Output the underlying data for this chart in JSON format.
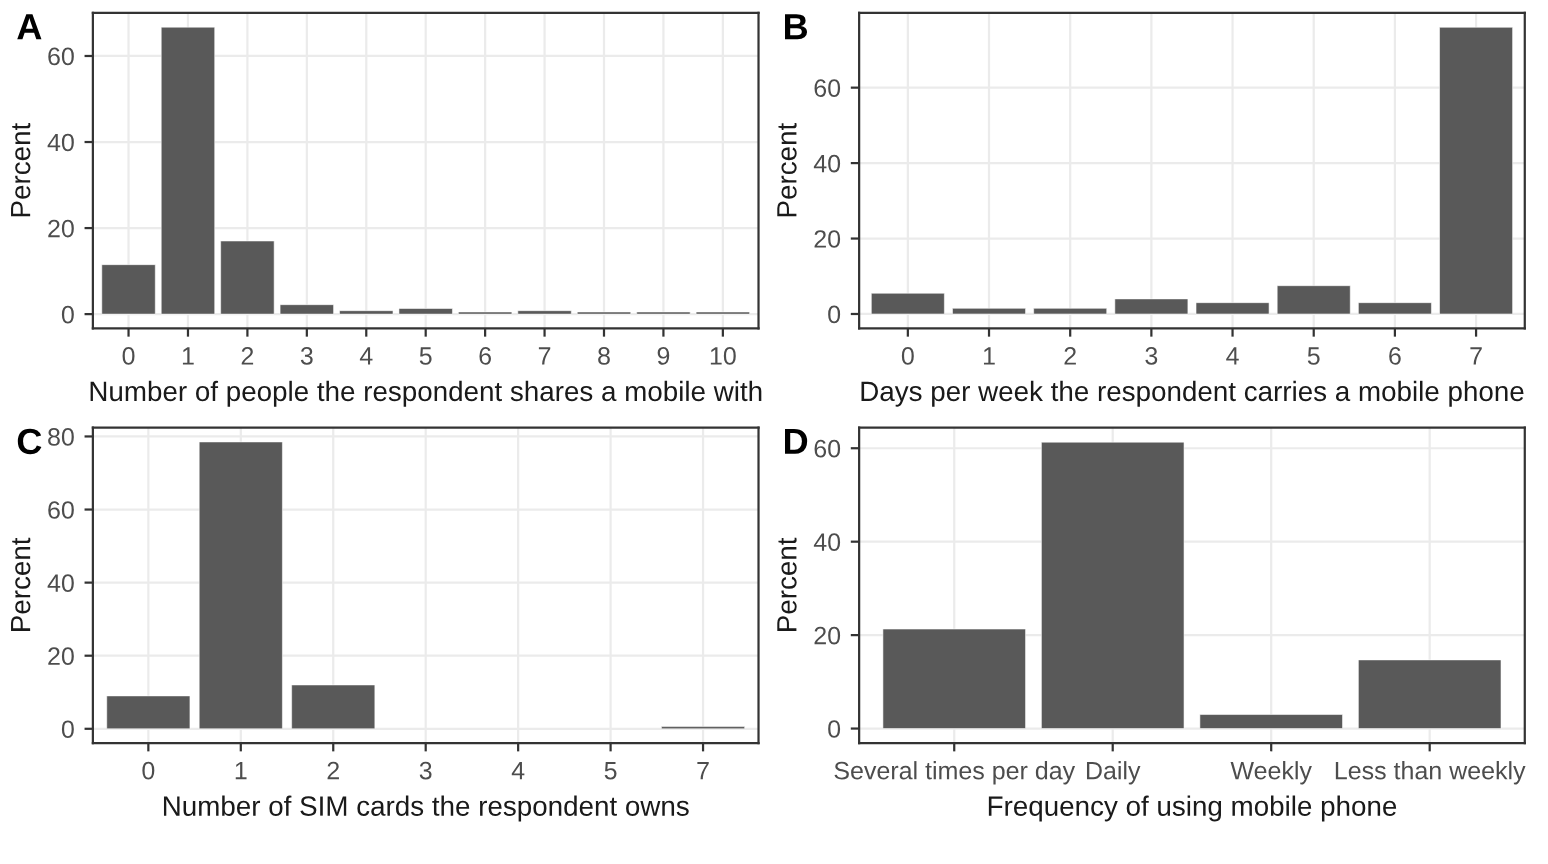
{
  "chart_data": [
    {
      "type": "bar",
      "title": "A",
      "xlabel": "Number of people the respondent shares a mobile with",
      "ylabel": "Percent",
      "categories": [
        "0",
        "1",
        "2",
        "3",
        "4",
        "5",
        "6",
        "7",
        "8",
        "9",
        "10"
      ],
      "color": "#595959",
      "values": [
        11.5,
        66.7,
        17,
        2.2,
        0.8,
        1.3,
        0.5,
        0.8,
        0.5,
        0.5,
        0.5
      ],
      "ylim": [
        -3.3,
        70
      ],
      "yticks": [
        0,
        20,
        40,
        60
      ],
      "grid": true
    },
    {
      "type": "bar",
      "title": "B",
      "xlabel": "Days per week the respondent carries a mobile phone",
      "ylabel": "Percent",
      "categories": [
        "0",
        "1",
        "2",
        "3",
        "4",
        "5",
        "6",
        "7"
      ],
      "color": "#595959",
      "values": [
        5.5,
        1.5,
        1.5,
        4,
        3,
        7.5,
        3,
        76
      ],
      "ylim": [
        -3.8,
        79.8
      ],
      "yticks": [
        0,
        20,
        40,
        60
      ],
      "grid": true
    },
    {
      "type": "bar",
      "title": "C",
      "xlabel": "Number of SIM cards the respondent owns",
      "ylabel": "Percent",
      "categories": [
        "0",
        "1",
        "2",
        "3",
        "4",
        "5",
        "7"
      ],
      "color": "#595959",
      "values": [
        9,
        78.5,
        12,
        null,
        null,
        null,
        0.6
      ],
      "ylim": [
        -3.9,
        82.4
      ],
      "yticks": [
        0,
        20,
        40,
        60,
        80
      ],
      "grid": true
    },
    {
      "type": "bar",
      "title": "D",
      "xlabel": "Frequency of using mobile phone",
      "ylabel": "Percent",
      "categories": [
        "Several times per day",
        "Daily",
        "Weekly",
        "Less than weekly"
      ],
      "color": "#595959",
      "values": [
        21.3,
        61.3,
        3,
        14.7
      ],
      "ylim": [
        -3.1,
        64.4
      ],
      "yticks": [
        0,
        20,
        40,
        60
      ],
      "grid": true
    }
  ]
}
